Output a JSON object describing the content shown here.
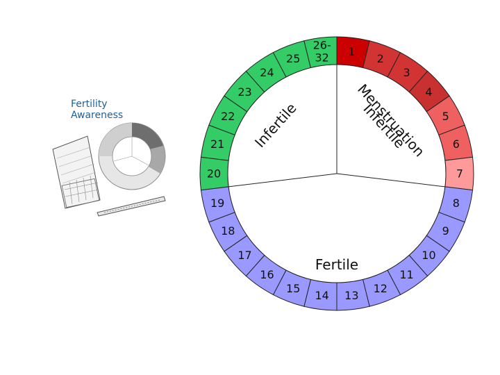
{
  "logo": {
    "title_line1": "Fertility",
    "title_line2": "Awareness"
  },
  "wheel": {
    "day_labels": [
      "1",
      "2",
      "3",
      "4",
      "5",
      "6",
      "7",
      "8",
      "9",
      "10",
      "11",
      "12",
      "13",
      "14",
      "15",
      "16",
      "17",
      "18",
      "19",
      "20",
      "21",
      "22",
      "23",
      "24",
      "25",
      "26-\n32"
    ],
    "segment_colors": [
      "#cc0000",
      "#d23333",
      "#d23333",
      "#c93030",
      "#ef6060",
      "#ef6060",
      "#ff9a9a",
      "#9999ff",
      "#9999ff",
      "#9999ff",
      "#9999ff",
      "#9999ff",
      "#9999ff",
      "#9999ff",
      "#9999ff",
      "#9999ff",
      "#9999ff",
      "#9999ff",
      "#9999ff",
      "#33cc66",
      "#33cc66",
      "#33cc66",
      "#33cc66",
      "#33cc66",
      "#33cc66",
      "#33cc66"
    ],
    "phases": {
      "menstruation": "Menstruation",
      "infertile_early": "Infertile",
      "infertile_late": "Infertile",
      "fertile": "Fertile"
    }
  }
}
